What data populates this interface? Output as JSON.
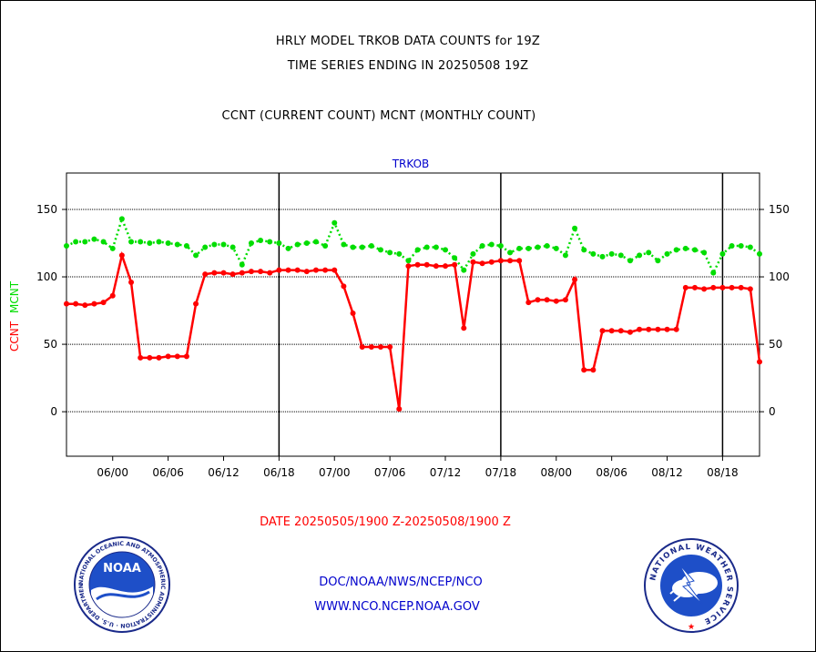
{
  "header": {
    "title_line1": "HRLY MODEL TRKOB DATA COUNTS for 19Z",
    "title_line2": "TIME SERIES ENDING IN 20250508 19Z",
    "subtitle": "CCNT (CURRENT COUNT) MCNT (MONTHLY COUNT)"
  },
  "footer": {
    "date_range": "DATE 20250505/1900 Z-20250508/1900 Z",
    "org_line": "DOC/NOAA/NWS/NCEP/NCO",
    "url_line": "WWW.NCO.NCEP.NOAA.GOV",
    "noaa_logo_text": "NOAA",
    "noaa_ring_text": "NATIONAL OCEANIC AND ATMOSPHERIC ADMINISTRATION · U.S. DEPARTMENT OF COMMERCE ·",
    "nws_ring_text": "NATIONAL WEATHER SERVICE"
  },
  "colors": {
    "ccnt": "#ff0000",
    "mcnt": "#00dd00",
    "panel_title": "#0000cc",
    "footer_text": "#0000cc",
    "date_text": "#ff0000"
  },
  "chart_data": {
    "type": "line",
    "title": "TRKOB",
    "ylabel_ccnt": "CCNT",
    "ylabel_mcnt": "MCNT",
    "ylim": [
      -33,
      177
    ],
    "yticks": [
      0,
      50,
      100,
      150
    ],
    "ytick_labels": [
      "0",
      "50",
      "100",
      "150"
    ],
    "x_start_hour": 19,
    "xticks": [
      {
        "hour": 24,
        "label": "06/00"
      },
      {
        "hour": 30,
        "label": "06/06"
      },
      {
        "hour": 36,
        "label": "06/12"
      },
      {
        "hour": 42,
        "label": "06/18"
      },
      {
        "hour": 48,
        "label": "07/00"
      },
      {
        "hour": 54,
        "label": "07/06"
      },
      {
        "hour": 60,
        "label": "07/12"
      },
      {
        "hour": 66,
        "label": "07/18"
      },
      {
        "hour": 72,
        "label": "08/00"
      },
      {
        "hour": 78,
        "label": "08/06"
      },
      {
        "hour": 84,
        "label": "08/12"
      },
      {
        "hour": 90,
        "label": "08/18"
      }
    ],
    "day_dividers": [
      42,
      66,
      90
    ],
    "series": [
      {
        "name": "CCNT",
        "style": "solid",
        "values": [
          80,
          80,
          79,
          80,
          81,
          86,
          116,
          96,
          40,
          40,
          40,
          41,
          41,
          41,
          80,
          102,
          103,
          103,
          102,
          103,
          104,
          104,
          103,
          105,
          105,
          105,
          104,
          105,
          105,
          105,
          93,
          73,
          48,
          48,
          48,
          48,
          2,
          108,
          109,
          109,
          108,
          108,
          109,
          62,
          111,
          110,
          111,
          112,
          112,
          112,
          81,
          83,
          83,
          82,
          83,
          98,
          31,
          31,
          60,
          60,
          60,
          59,
          61,
          61,
          61,
          61,
          61,
          92,
          92,
          91,
          92,
          92,
          92,
          92,
          91,
          37
        ]
      },
      {
        "name": "MCNT",
        "style": "dotted",
        "values": [
          123,
          126,
          126,
          128,
          126,
          121,
          143,
          126,
          126,
          125,
          126,
          125,
          124,
          123,
          116,
          122,
          124,
          124,
          122,
          109,
          125,
          127,
          126,
          125,
          121,
          124,
          125,
          126,
          123,
          140,
          124,
          122,
          122,
          123,
          120,
          118,
          117,
          112,
          120,
          122,
          122,
          120,
          114,
          105,
          117,
          123,
          124,
          123,
          118,
          121,
          121,
          122,
          123,
          121,
          116,
          136,
          120,
          117,
          115,
          117,
          116,
          112,
          116,
          118,
          112,
          117,
          120,
          121,
          120,
          118,
          103,
          117,
          123,
          123,
          122,
          117
        ]
      }
    ]
  }
}
